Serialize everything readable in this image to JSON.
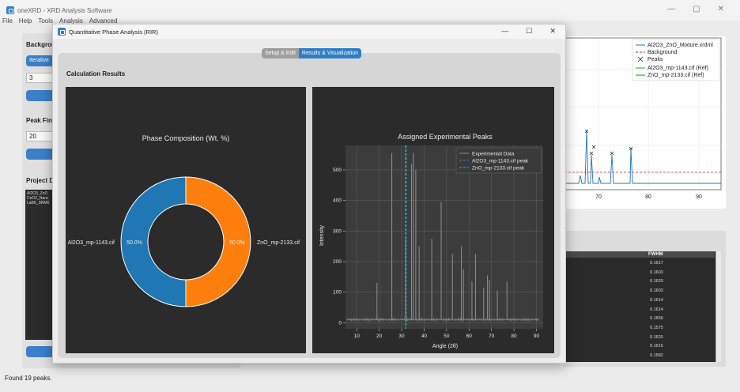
{
  "main_window": {
    "title": "oneXRD - XRD Analysis Software",
    "menu": [
      "File",
      "Help",
      "Tools",
      "Analysis",
      "Advanced"
    ]
  },
  "left_panel": {
    "background_label": "Backgrou",
    "iterative_label": "Iterative",
    "iter_value": "3",
    "peak_label": "Peak Fin",
    "peak_value": "20",
    "project_label": "Project D",
    "files": [
      "Al2O3_ZnO",
      "CeO2_Nanc",
      "LaB6_SRM6"
    ]
  },
  "right_plot": {
    "legend": [
      "Al2O3_ZnO_Mixture.xrdml",
      "Background",
      "Peaks",
      "Al2O3_mp-1143.cif (Ref)",
      "ZnO_mp-2133.cif (Ref)"
    ],
    "x_ticks": [
      "70",
      "80",
      "90"
    ]
  },
  "right_table": {
    "header": "FWHM",
    "values": [
      "0.1617",
      "0.1603",
      "0.1620",
      "0.1603",
      "0.1614",
      "0.1614",
      "0.1656",
      "0.1575",
      "0.1620",
      "0.1615",
      "0.1582"
    ]
  },
  "status": "Found 19 peaks.",
  "dialog": {
    "title": "Quantitative Phase Analysis (RIR)",
    "tabs": [
      "Setup & Edit",
      "Results & Visualization"
    ],
    "section_title": "Calculation Results"
  },
  "chart_data": [
    {
      "type": "pie",
      "title": "Phase Composition (Wt. %)",
      "labels": [
        "Al2O3_mp-1143.cif",
        "ZnO_mp-2133.cif"
      ],
      "values": [
        50.0,
        50.0
      ],
      "value_labels": [
        "50.0%",
        "50.0%"
      ],
      "colors": [
        "#1f77b4",
        "#ff7f0e"
      ]
    },
    {
      "type": "line",
      "title": "Assigned Experimental Peaks",
      "xlabel": "Angle (2θ)",
      "ylabel": "Intensity",
      "xlim": [
        5,
        93
      ],
      "ylim": [
        -20,
        580
      ],
      "x_ticks": [
        10,
        20,
        30,
        40,
        50,
        60,
        70,
        80,
        90
      ],
      "y_ticks": [
        0,
        100,
        200,
        300,
        400,
        500
      ],
      "grid": true,
      "legend_position": "top-right",
      "series": [
        {
          "name": "Experimental Data",
          "color": "#888888",
          "baseline": 10,
          "peaks": [
            {
              "x": 25.6,
              "y": 555
            },
            {
              "x": 31.8,
              "y": 280
            },
            {
              "x": 34.4,
              "y": 520
            },
            {
              "x": 35.2,
              "y": 555
            },
            {
              "x": 36.3,
              "y": 500
            },
            {
              "x": 37.8,
              "y": 250
            },
            {
              "x": 43.4,
              "y": 275
            },
            {
              "x": 47.6,
              "y": 395
            },
            {
              "x": 52.6,
              "y": 225
            },
            {
              "x": 56.6,
              "y": 250
            },
            {
              "x": 57.5,
              "y": 175
            },
            {
              "x": 61.3,
              "y": 135
            },
            {
              "x": 62.9,
              "y": 225
            },
            {
              "x": 66.5,
              "y": 115
            },
            {
              "x": 68.2,
              "y": 155
            },
            {
              "x": 69.1,
              "y": 140
            },
            {
              "x": 72.6,
              "y": 105
            },
            {
              "x": 76.9,
              "y": 135
            },
            {
              "x": 19.0,
              "y": 130
            }
          ]
        },
        {
          "name": "Al2O3_mp-1143.cif peak",
          "color": "#3a7fd5",
          "style": "dashed",
          "x": 31.8
        },
        {
          "name": "ZnO_mp-2133.cif peak",
          "color": "#17becf",
          "style": "dashed",
          "x": 31.8
        }
      ]
    }
  ]
}
